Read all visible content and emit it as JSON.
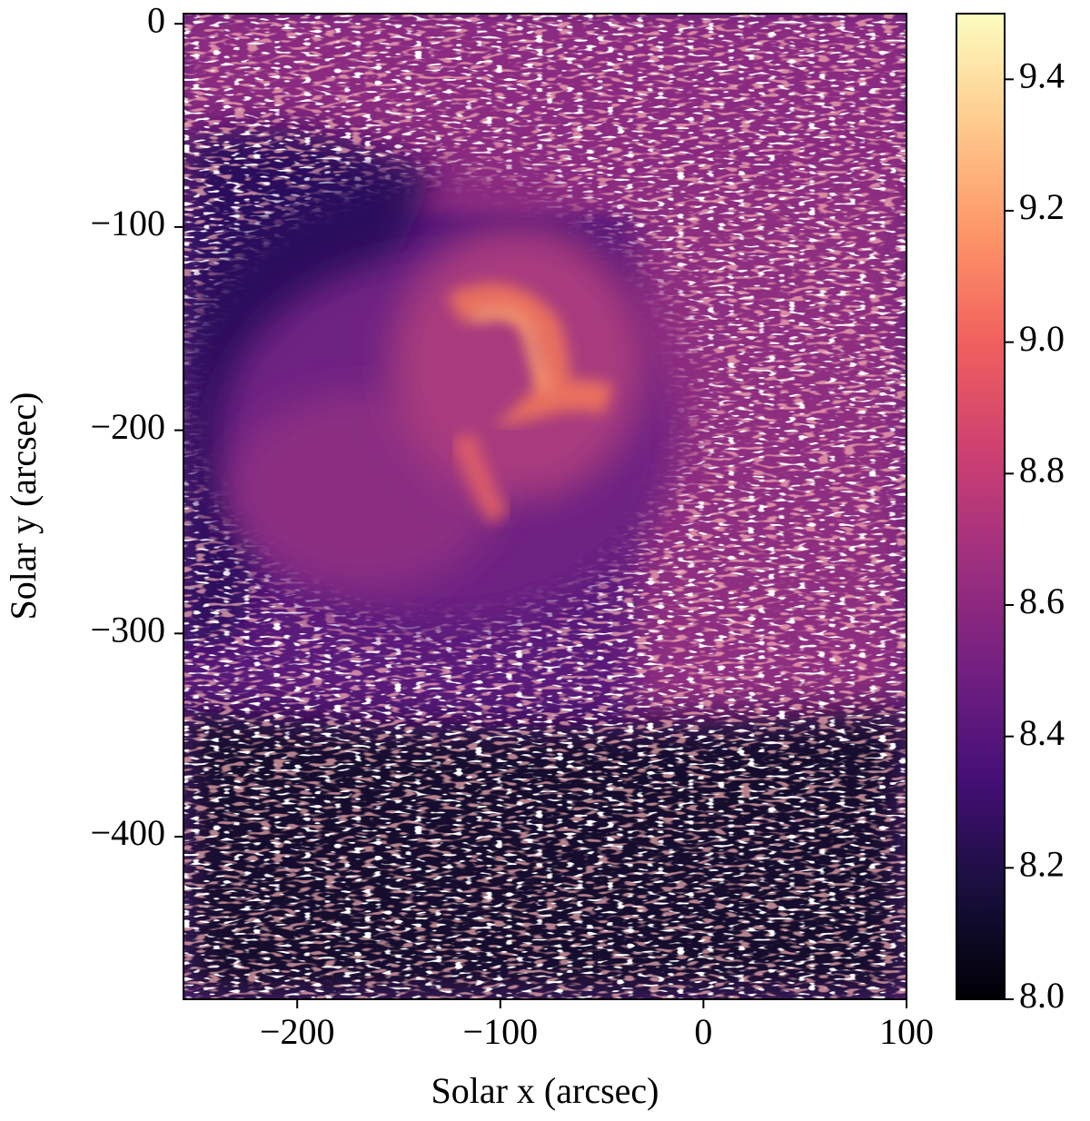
{
  "chart_data": {
    "type": "image",
    "xlabel": "Solar x (arcsec)",
    "ylabel": "Solar y (arcsec)",
    "xlim": [
      -256,
      100
    ],
    "ylim": [
      -480,
      5
    ],
    "xticks": [
      {
        "value": -200,
        "label": "−200"
      },
      {
        "value": -100,
        "label": "−100"
      },
      0,
      100
    ],
    "yticks": [
      0,
      {
        "value": -100,
        "label": "−100"
      },
      {
        "value": -200,
        "label": "−200"
      },
      {
        "value": -300,
        "label": "−300"
      },
      {
        "value": -400,
        "label": "−400"
      }
    ],
    "colorbar": {
      "lim": [
        8.0,
        9.5
      ],
      "ticks": [
        {
          "value": 8.0,
          "label": "8.0"
        },
        {
          "value": 8.2,
          "label": "8.2"
        },
        {
          "value": 8.4,
          "label": "8.4"
        },
        {
          "value": 8.6,
          "label": "8.6"
        },
        {
          "value": 8.8,
          "label": "8.8"
        },
        {
          "value": 9.0,
          "label": "9.0"
        },
        {
          "value": 9.2,
          "label": "9.2"
        },
        {
          "value": 9.4,
          "label": "9.4"
        }
      ]
    },
    "colormap": [
      "#000004",
      "#180f3d",
      "#440f76",
      "#721f81",
      "#9e2f7f",
      "#cd4071",
      "#f1605d",
      "#fd9668",
      "#feca8d",
      "#fcfdbf"
    ]
  }
}
